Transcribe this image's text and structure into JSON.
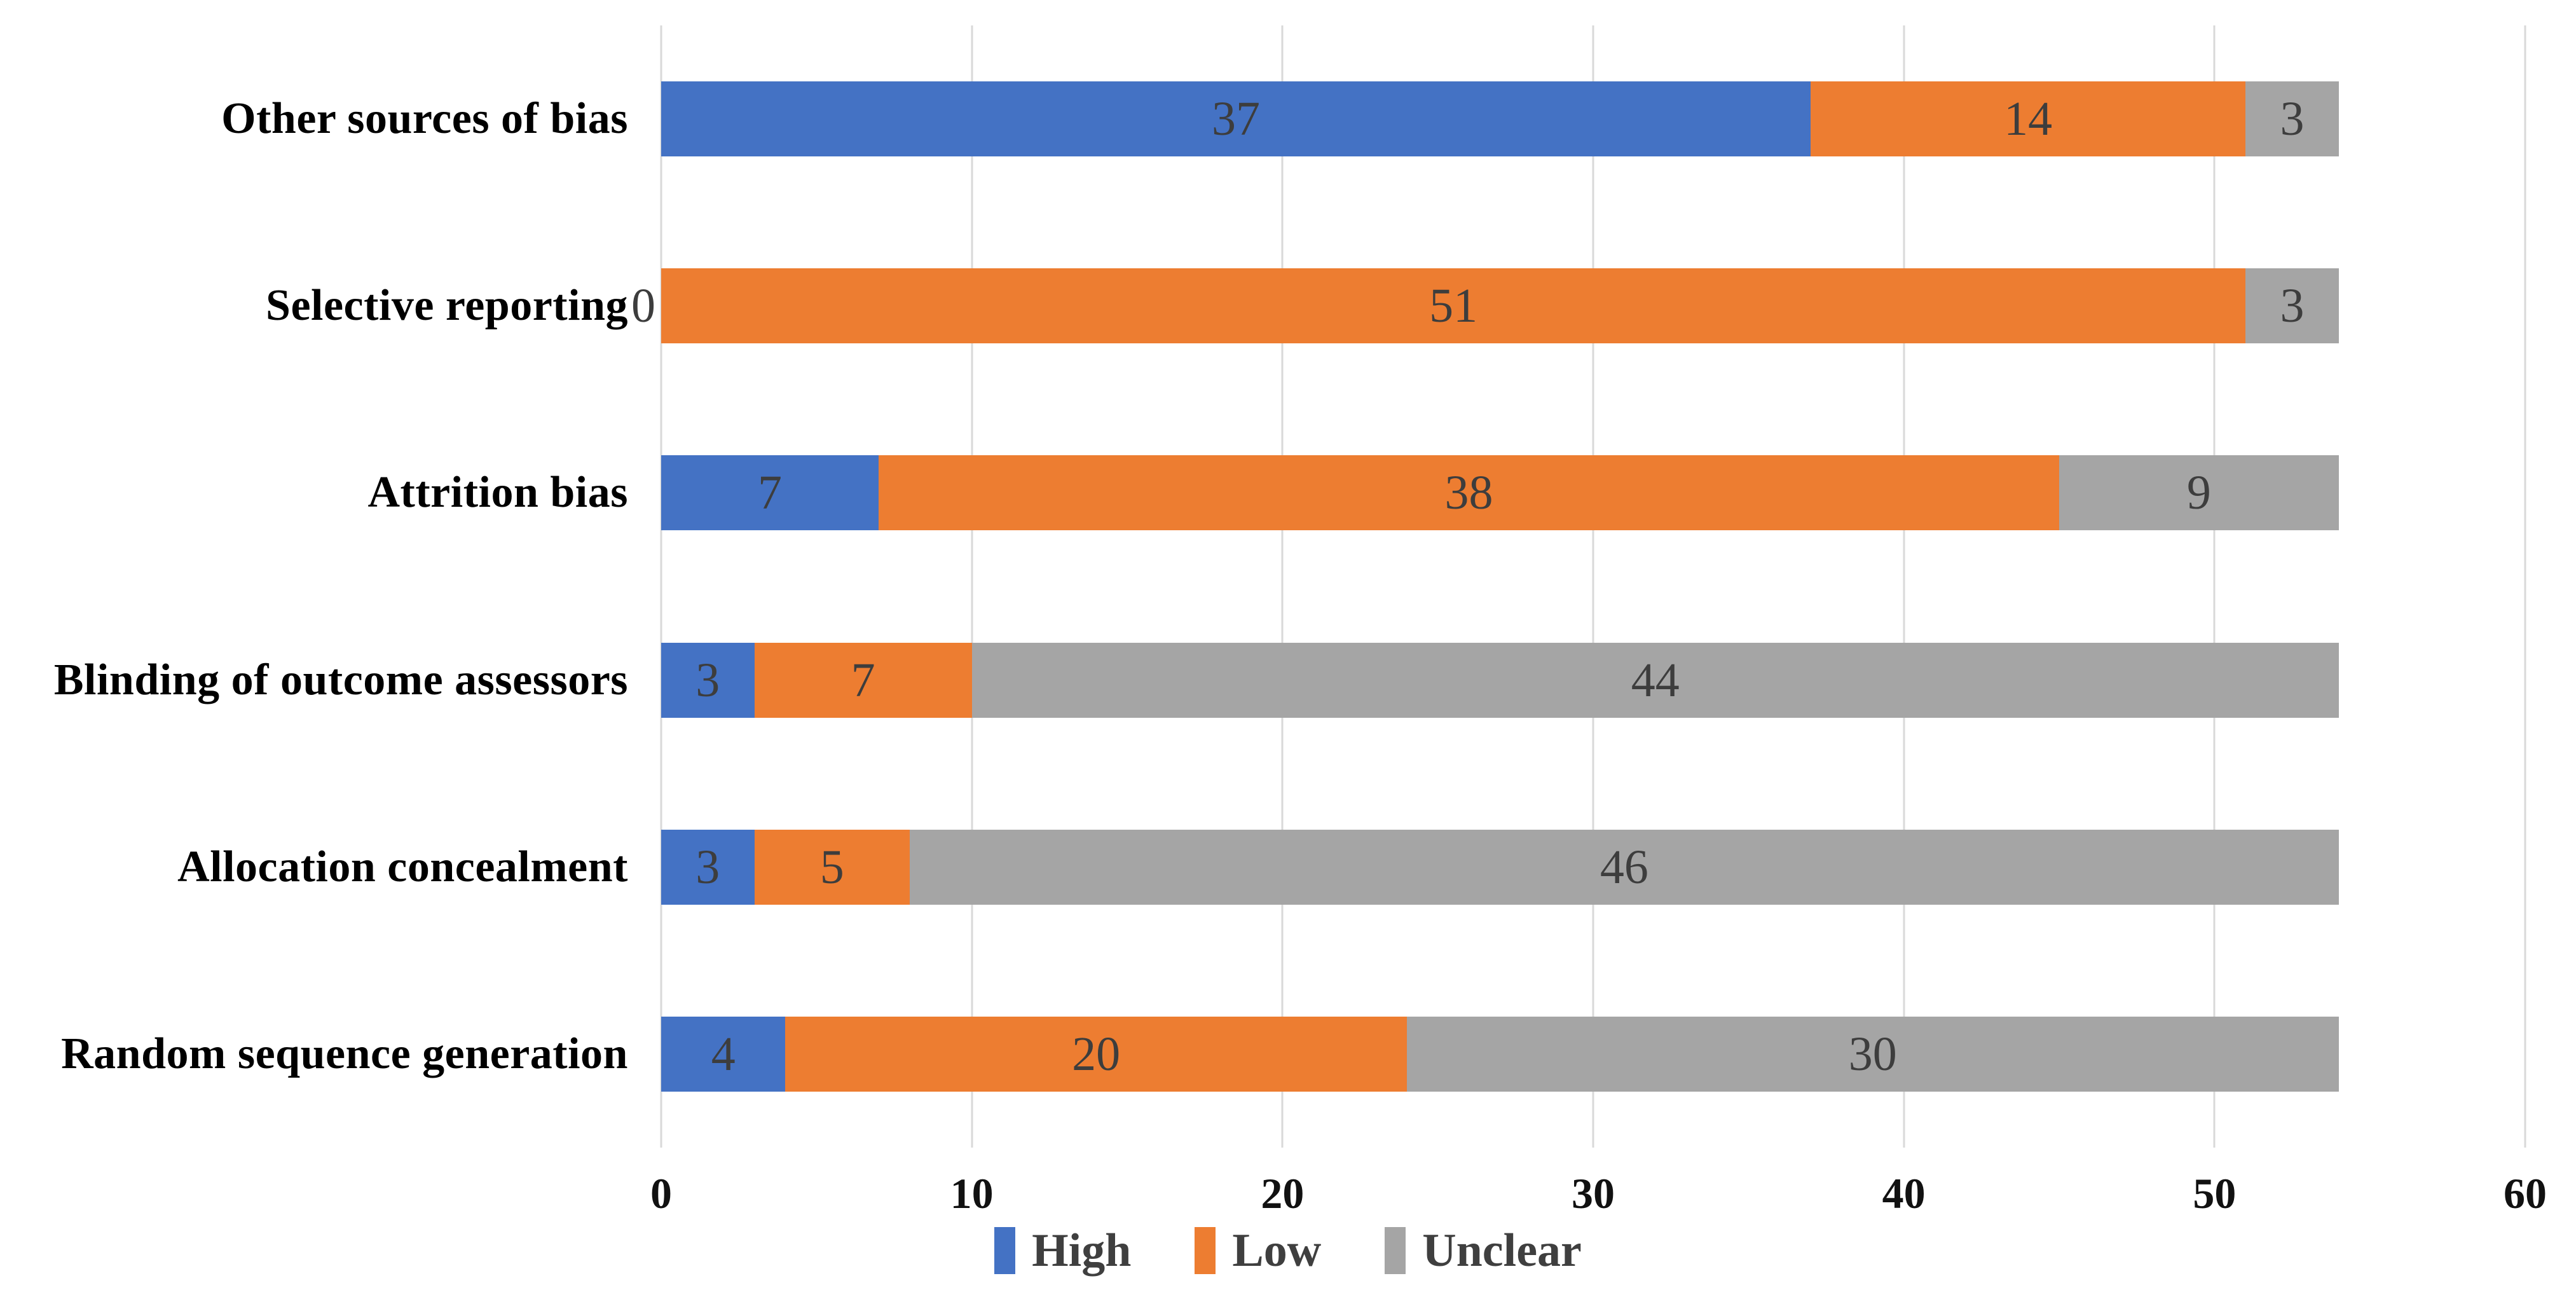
{
  "chart_data": {
    "type": "bar",
    "orientation": "horizontal",
    "stacked": true,
    "title": "",
    "xlabel": "",
    "ylabel": "",
    "categories": [
      "Other sources of bias",
      "Selective reporting",
      "Attrition bias",
      "Blinding of outcome assessors",
      "Allocation concealment",
      "Random sequence generation"
    ],
    "series": [
      {
        "name": "High",
        "color": "#4472C4",
        "values": [
          37,
          0,
          7,
          3,
          3,
          4
        ]
      },
      {
        "name": "Low",
        "color": "#ED7D31",
        "values": [
          14,
          51,
          38,
          7,
          5,
          20
        ]
      },
      {
        "name": "Unclear",
        "color": "#A5A5A5",
        "values": [
          3,
          3,
          9,
          44,
          46,
          30
        ]
      }
    ],
    "xlim": [
      0,
      60
    ],
    "x_ticks": [
      0,
      10,
      20,
      30,
      40,
      50,
      60
    ],
    "grid": true,
    "gridline_color": "#D9D9D9",
    "data_labels": true,
    "data_label_color": "#3d3d3d",
    "legend_position": "bottom"
  }
}
